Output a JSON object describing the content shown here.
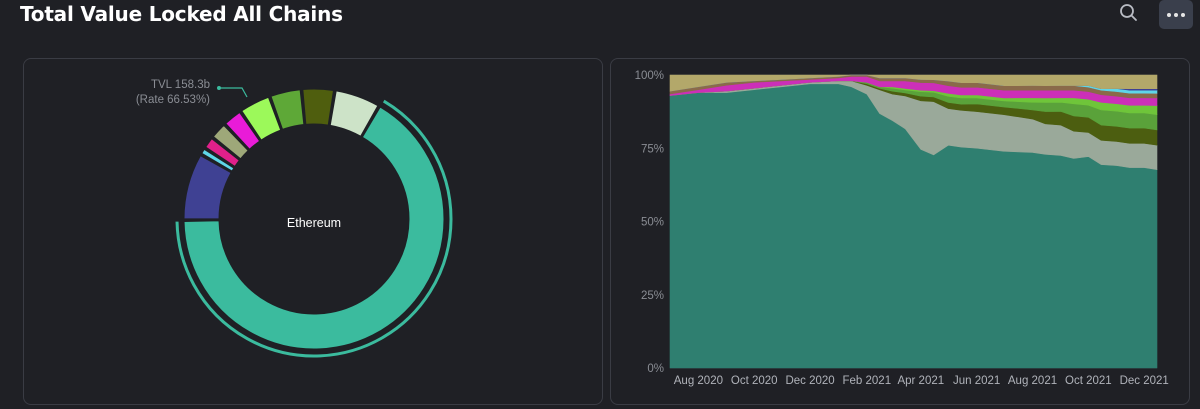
{
  "header": {
    "title": "Total Value Locked All Chains",
    "search_icon": "search-icon",
    "more_icon": "more-horizontal-icon"
  },
  "chart_data": [
    {
      "type": "pie",
      "style": "donut",
      "center_label": "Ethereum",
      "tooltip": {
        "line1": "TVL 158.3b",
        "line2": "(Rate 66.53%)"
      },
      "highlighted": "Ethereum",
      "slices": [
        {
          "name": "Ethereum",
          "value": 66.53,
          "color": "#3bbb9e"
        },
        {
          "name": "",
          "value": 8.4,
          "color": "#3f4193"
        },
        {
          "name": "",
          "value": 0.9,
          "color": "#5fd6e8"
        },
        {
          "name": "",
          "value": 1.6,
          "color": "#e0208a"
        },
        {
          "name": "",
          "value": 2.2,
          "color": "#9ea879"
        },
        {
          "name": "",
          "value": 2.5,
          "color": "#e91bd8"
        },
        {
          "name": "",
          "value": 4.0,
          "color": "#9cf95a"
        },
        {
          "name": "",
          "value": 4.0,
          "color": "#5ea837"
        },
        {
          "name": "",
          "value": 4.1,
          "color": "#4f5e0e"
        },
        {
          "name": "",
          "value": 5.77,
          "color": "#cde3c8"
        }
      ]
    },
    {
      "type": "area",
      "stacking": "percent",
      "ylim": [
        0,
        100
      ],
      "ytick_labels": [
        "0%",
        "25%",
        "50%",
        "75%",
        "100%"
      ],
      "xtick_labels": [
        "Aug 2020",
        "Oct 2020",
        "Dec 2020",
        "Feb 2021",
        "Apr 2021",
        "Jun 2021",
        "Aug 2021",
        "Oct 2021",
        "Dec 2021"
      ],
      "x": [
        "2020-07-01",
        "2020-08-01",
        "2020-09-01",
        "2020-10-01",
        "2020-11-01",
        "2020-12-01",
        "2021-01-01",
        "2021-01-15",
        "2021-02-01",
        "2021-02-15",
        "2021-03-01",
        "2021-03-15",
        "2021-04-01",
        "2021-04-15",
        "2021-05-01",
        "2021-05-15",
        "2021-06-01",
        "2021-07-01",
        "2021-08-01",
        "2021-08-15",
        "2021-09-01",
        "2021-09-15",
        "2021-10-01",
        "2021-10-15",
        "2021-11-01",
        "2021-11-15",
        "2021-12-01",
        "2021-12-15"
      ],
      "series": [
        {
          "name": "Ethereum",
          "color": "#2f7f70",
          "values": [
            93,
            94,
            94,
            95,
            96,
            97,
            97,
            96,
            93,
            86,
            84,
            80,
            72,
            68,
            73,
            72,
            72,
            71,
            71,
            70,
            70,
            69,
            70,
            67,
            67,
            66,
            66,
            65
          ]
        },
        {
          "name": "",
          "color": "#9aa99a",
          "values": [
            0,
            0,
            0.5,
            0.5,
            0.5,
            0.5,
            1,
            2,
            3,
            8,
            9,
            11,
            16,
            17,
            12,
            12,
            12,
            12,
            11,
            10,
            10,
            9,
            8,
            8,
            8,
            8,
            8,
            8
          ]
        },
        {
          "name": "",
          "color": "#4c5e10",
          "values": [
            0,
            0,
            0,
            0,
            0,
            0,
            0,
            0,
            0.5,
            0.5,
            1,
            1,
            1.5,
            1.5,
            2,
            2,
            2.5,
            2.5,
            3,
            4,
            4.5,
            5,
            5,
            5,
            5,
            5,
            5,
            5
          ]
        },
        {
          "name": "",
          "color": "#5aa23a",
          "values": [
            0,
            0,
            0,
            0,
            0,
            0,
            0,
            0,
            0.5,
            0.5,
            1,
            1,
            1.5,
            1.5,
            2,
            2,
            2,
            2,
            2.5,
            3,
            3,
            4,
            4,
            5,
            5,
            5,
            5,
            5
          ]
        },
        {
          "name": "",
          "color": "#6fc53a",
          "values": [
            0,
            0,
            0,
            0,
            0,
            0,
            0,
            0,
            0,
            0,
            0.5,
            0.5,
            0.5,
            0.5,
            1,
            1,
            1,
            1,
            1.5,
            1.5,
            1.5,
            2,
            2,
            2.5,
            2.5,
            2.5,
            2.5,
            3
          ]
        },
        {
          "name": "",
          "color": "#cc2fb8",
          "values": [
            0.5,
            1,
            2,
            2,
            1.5,
            1,
            1,
            1.5,
            2,
            2,
            2,
            2.5,
            2.5,
            2.5,
            2.5,
            2.5,
            2.5,
            2.5,
            2.5,
            2.5,
            2.5,
            2.5,
            2.5,
            2.5,
            2.5,
            2.5,
            2.5,
            2.5
          ]
        },
        {
          "name": "",
          "color": "#8a6a4a",
          "values": [
            1,
            1,
            1,
            0.5,
            0.5,
            0.5,
            0.5,
            0.5,
            0.5,
            1,
            1,
            1,
            1,
            1,
            1.5,
            1.5,
            1.5,
            1.5,
            1.5,
            1.5,
            1.5,
            1.5,
            1.5,
            1.5,
            1.5,
            1.5,
            1.5,
            1.5
          ]
        },
        {
          "name": "",
          "color": "#5fd6e8",
          "values": [
            0,
            0,
            0,
            0,
            0,
            0,
            0,
            0,
            0,
            0,
            0,
            0,
            0,
            0,
            0,
            0,
            0,
            0,
            0,
            0,
            0,
            0,
            0.5,
            0.5,
            1,
            1,
            1,
            1
          ]
        },
        {
          "name": "",
          "color": "#3f4193",
          "values": [
            0,
            0,
            0,
            0,
            0,
            0,
            0,
            0,
            0,
            0,
            0,
            0,
            0,
            0,
            0,
            0,
            0,
            0,
            0,
            0,
            0,
            0,
            0,
            0,
            0,
            0.5,
            0.5,
            0.5
          ]
        },
        {
          "name": "",
          "color": "#b3a86a",
          "values": [
            5.5,
            4,
            2.5,
            2,
            1.5,
            1,
            0.5,
            0,
            0,
            1,
            1,
            1,
            1.5,
            1.5,
            2,
            2.5,
            2.5,
            3.5,
            3.5,
            3.5,
            3.5,
            3.5,
            3.5,
            4.5,
            4.5,
            4.5,
            4.5,
            4.5
          ]
        }
      ]
    }
  ]
}
